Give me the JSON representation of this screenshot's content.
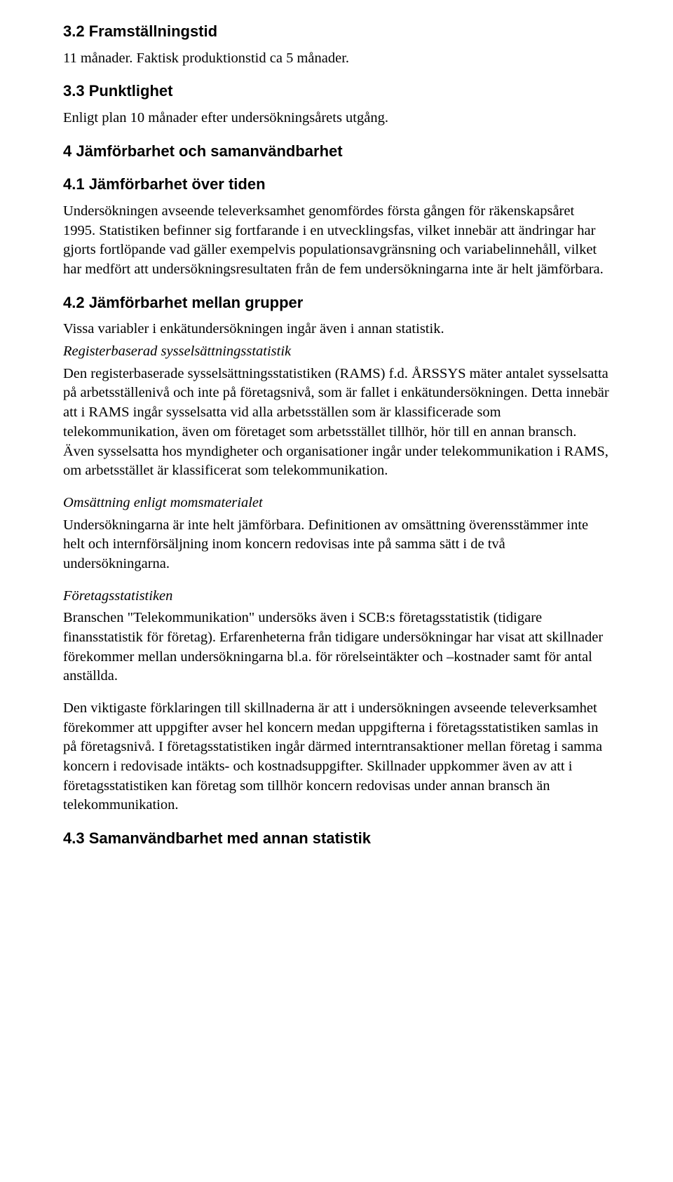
{
  "sections": {
    "s32": {
      "heading": "3.2 Framställningstid",
      "body": "11 månader. Faktisk produktionstid ca 5 månader."
    },
    "s33": {
      "heading": "3.3 Punktlighet",
      "body": "Enligt plan 10 månader efter undersökningsårets utgång."
    },
    "s4": {
      "heading": "4 Jämförbarhet och samanvändbarhet"
    },
    "s41": {
      "heading": "4.1 Jämförbarhet över tiden",
      "body": "Undersökningen avseende televerksamhet genomfördes första gången för räkenskapsåret 1995. Statistiken befinner sig fortfarande i en utvecklingsfas, vilket innebär att ändringar har gjorts fortlöpande vad gäller exempelvis populationsavgränsning och variabelinnehåll, vilket har medfört att undersökningsresultaten från de fem undersökningarna inte är helt jämförbara."
    },
    "s42": {
      "heading": "4.2 Jämförbarhet mellan grupper",
      "intro": "Vissa variabler i enkätundersökningen ingår även i annan statistik.",
      "sub1_title": "Registerbaserad sysselsättningsstatistik",
      "sub1_body": "Den registerbaserade sysselsättningsstatistiken (RAMS) f.d. ÅRSSYS mäter antalet sysselsatta på arbetsställenivå och inte på företagsnivå, som är fallet i enkätundersökningen. Detta innebär att i RAMS ingår sysselsatta vid alla arbetsställen som är klassificerade som telekommunikation, även om företaget som arbetsstället tillhör, hör till en annan bransch. Även sysselsatta hos myndigheter och organisationer ingår under telekommunikation i RAMS, om arbetsstället är klassificerat som telekommunikation.",
      "sub2_title": "Omsättning enligt momsmaterialet",
      "sub2_body": "Undersökningarna är inte helt jämförbara. Definitionen av omsättning överensstämmer inte helt och internförsäljning inom koncern redovisas inte på samma sätt i de två undersökningarna.",
      "sub3_title": "Företagsstatistiken",
      "sub3_body": "Branschen \"Telekommunikation\" undersöks även i SCB:s företagsstatistik (tidigare finansstatistik för företag). Erfarenheterna från tidigare undersökningar har visat att skillnader förekommer mellan undersökningarna bl.a. för rörelseintäkter och –kostnader samt för antal anställda.",
      "sub3_body2": "Den viktigaste förklaringen till  skillnaderna är att i undersökningen avseende televerksamhet förekommer att uppgifter avser hel koncern medan uppgifterna i företagsstatistiken samlas in på företagsnivå.  I företagsstatistiken ingår därmed interntransaktioner mellan företag i samma koncern i redovisade intäkts- och kostnadsuppgifter. Skillnader uppkommer  även av att  i företagsstatistiken kan företag som tillhör koncern redovisas under annan bransch än telekommunikation."
    },
    "s43": {
      "heading": "4.3 Samanvändbarhet med annan statistik"
    }
  }
}
